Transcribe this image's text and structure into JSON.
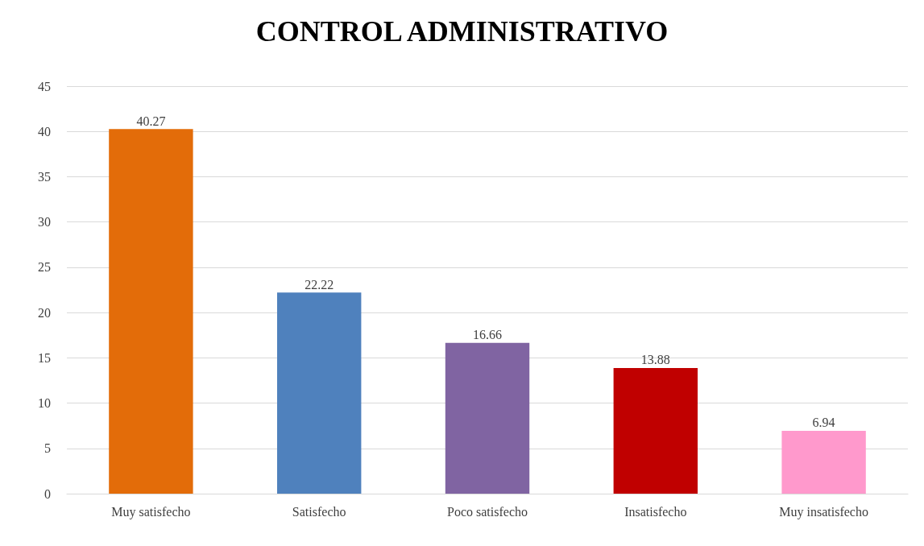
{
  "chart_data": {
    "type": "bar",
    "title": "CONTROL ADMINISTRATIVO",
    "categories": [
      "Muy satisfecho",
      "Satisfecho",
      "Poco satisfecho",
      "Insatisfecho",
      "Muy insatisfecho"
    ],
    "values": [
      40.27,
      22.22,
      16.66,
      13.88,
      6.94
    ],
    "colors": [
      "#e36c09",
      "#4f81bd",
      "#8064a2",
      "#c00000",
      "#ff99cc"
    ],
    "ylim": [
      0,
      45
    ],
    "yticks": [
      0,
      5,
      10,
      15,
      20,
      25,
      30,
      35,
      40,
      45
    ],
    "grid": "y",
    "data_labels": true
  }
}
